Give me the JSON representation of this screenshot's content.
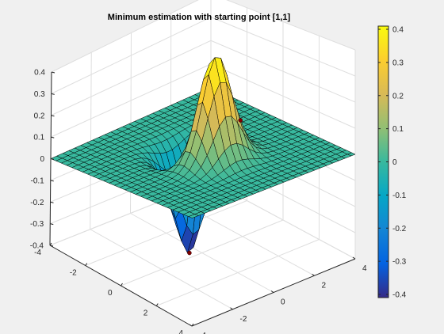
{
  "window": {
    "background": "#f0f0f0"
  },
  "chart_data": {
    "type": "surface",
    "title": "Minimum estimation with starting point [1,1]",
    "xlim": [
      -4,
      4
    ],
    "ylim": [
      -4,
      4
    ],
    "zlim": [
      -0.4,
      0.4
    ],
    "x_ticks": [
      -4,
      -2,
      0,
      2,
      4
    ],
    "y_ticks": [
      -4,
      -2,
      0,
      2,
      4
    ],
    "z_ticks": [
      -0.4,
      -0.3,
      -0.2,
      -0.1,
      0,
      0.1,
      0.2,
      0.3,
      0.4
    ],
    "x_tick_labels": [
      "-4",
      "-2",
      "0",
      "2",
      "4"
    ],
    "y_tick_labels": [
      "-4",
      "-2",
      "0",
      "2",
      "4"
    ],
    "z_tick_labels": [
      "-0.4",
      "-0.3",
      "-0.2",
      "-0.1",
      "0",
      "0.1",
      "0.2",
      "0.3",
      "0.4"
    ],
    "function": "x * exp(-x^2 - y^2)",
    "grid_step": 0.3,
    "grid": true,
    "colormap": "parula",
    "colormap_stops": [
      "#352a87",
      "#0363e1",
      "#1485d4",
      "#06a7c6",
      "#38b99e",
      "#92bf73",
      "#d9ba56",
      "#fcce2e",
      "#f9fb0e"
    ],
    "edge_color": "#000000",
    "colorbar": {
      "placement": "right",
      "limits": [
        -0.4,
        0.4
      ],
      "ticks": [
        0.4,
        0.3,
        0.2,
        0.1,
        0,
        -0.1,
        -0.2,
        -0.3,
        -0.4
      ],
      "tick_labels": [
        "0.4",
        "0.3",
        "0.2",
        "0.1",
        "0",
        "-0.1",
        "-0.2",
        "-0.3",
        "-0.4"
      ]
    },
    "markers": [
      {
        "label": "start-point",
        "x": 1,
        "y": 1,
        "color": "#7f0000"
      },
      {
        "label": "estimated-minimum",
        "x": -0.7,
        "y": 0,
        "color": "#7f0000"
      }
    ]
  }
}
